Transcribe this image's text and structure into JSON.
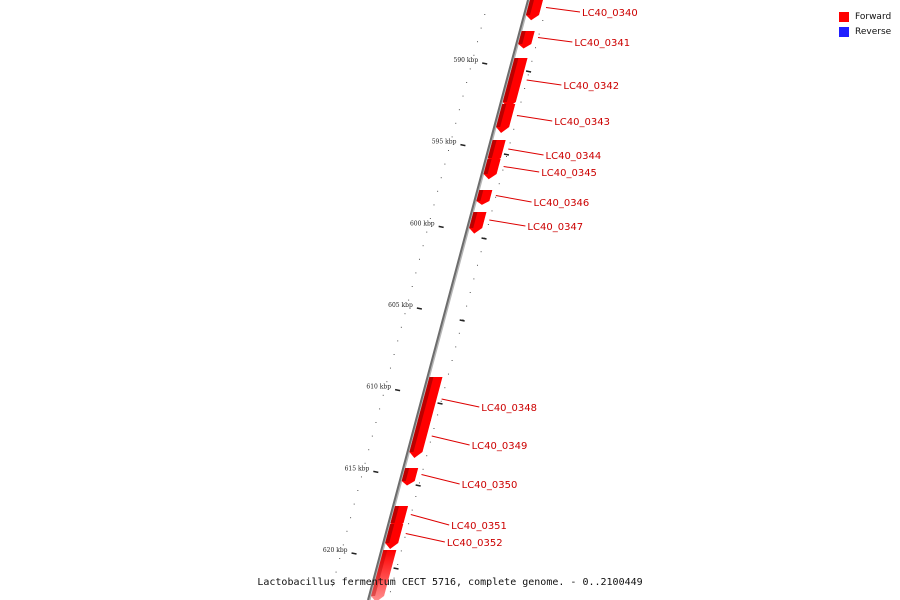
{
  "legend": {
    "forward": {
      "label": "Forward",
      "color": "#ff0000"
    },
    "reverse": {
      "label": "Reverse",
      "color": "#1f1fff"
    }
  },
  "caption": "Lactobacillus fermentum CECT 5716, complete genome. - 0..2100449",
  "kbp_labels": [
    {
      "kbp": 590,
      "text": "590 kbp"
    },
    {
      "kbp": 595,
      "text": "595 kbp"
    },
    {
      "kbp": 600,
      "text": "600 kbp"
    },
    {
      "kbp": 605,
      "text": "605 kbp"
    },
    {
      "kbp": 610,
      "text": "610 kbp"
    },
    {
      "kbp": 615,
      "text": "615 kbp"
    },
    {
      "kbp": 620,
      "text": "620 kbp"
    }
  ],
  "genes": [
    {
      "id": "LC40_0340",
      "strand": "forward"
    },
    {
      "id": "LC40_0341",
      "strand": "forward"
    },
    {
      "id": "LC40_0342",
      "strand": "forward"
    },
    {
      "id": "LC40_0343",
      "strand": "forward"
    },
    {
      "id": "LC40_0344",
      "strand": "forward"
    },
    {
      "id": "LC40_0345",
      "strand": "forward"
    },
    {
      "id": "LC40_0346",
      "strand": "forward"
    },
    {
      "id": "LC40_0347",
      "strand": "forward"
    },
    {
      "id": "LC40_0348",
      "strand": "forward"
    },
    {
      "id": "LC40_0349",
      "strand": "forward"
    },
    {
      "id": "LC40_0350",
      "strand": "forward"
    },
    {
      "id": "LC40_0351",
      "strand": "forward"
    },
    {
      "id": "LC40_0352",
      "strand": "forward"
    },
    {
      "id": "",
      "strand": "forward"
    }
  ]
}
